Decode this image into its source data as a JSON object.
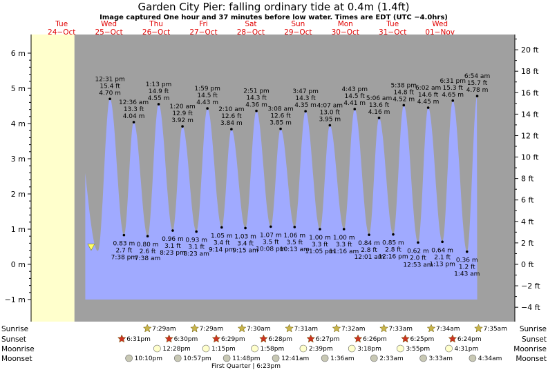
{
  "title": "Garden City Pier: falling  ordinary tide at 0.4m (1.4ft)",
  "subtitle": "Image captured One hour and 37 minutes before low water. Times are EDT (UTC −4.0hrs)",
  "colors": {
    "water": "#a0aaff",
    "day": "#ffffcc",
    "night": "#a0a0a0",
    "day_label": "#e00000",
    "sun_marker": "#c8b44b",
    "sunset_marker": "#cc3322",
    "moonrise": "#ffffcc",
    "moonset": "#c8c8b4"
  },
  "chart_data": {
    "type": "area",
    "title": "Garden City Pier: falling  ordinary tide at 0.4m (1.4ft)",
    "y_left": {
      "unit": "m",
      "ticks": [
        -1,
        0,
        1,
        2,
        3,
        4,
        5,
        6
      ],
      "labels": [
        "−1 m",
        "0 m",
        "1 m",
        "2 m",
        "3 m",
        "4 m",
        "5 m",
        "6 m"
      ]
    },
    "y_right": {
      "unit": "ft",
      "ticks": [
        -4,
        -2,
        0,
        2,
        4,
        6,
        8,
        10,
        12,
        14,
        16,
        18,
        20
      ],
      "labels": [
        "−4 ft",
        "−2 ft",
        "0 ft",
        "2 ft",
        "4 ft",
        "6 ft",
        "8 ft",
        "10 ft",
        "12 ft",
        "14 ft",
        "16 ft",
        "18 ft",
        "20 ft"
      ]
    },
    "days": [
      {
        "dow": "Tue",
        "date": "24−Oct"
      },
      {
        "dow": "Wed",
        "date": "25−Oct"
      },
      {
        "dow": "Thu",
        "date": "26−Oct"
      },
      {
        "dow": "Fri",
        "date": "27−Oct"
      },
      {
        "dow": "Sat",
        "date": "28−Oct"
      },
      {
        "dow": "Sun",
        "date": "29−Oct"
      },
      {
        "dow": "Mon",
        "date": "30−Oct"
      },
      {
        "dow": "Tue",
        "date": "31−Oct"
      },
      {
        "dow": "Wed",
        "date": "01−Nov"
      }
    ],
    "high_tides": [
      {
        "time": "12:31 pm",
        "ft": "15.4 ft",
        "m": "4.70 m",
        "h": 12.52,
        "value": 4.7
      },
      {
        "time": "12:36 am",
        "ft": "13.3 ft",
        "m": "4.04 m",
        "h": 24.6,
        "value": 4.04
      },
      {
        "time": "1:13 pm",
        "ft": "14.9 ft",
        "m": "4.55 m",
        "h": 37.22,
        "value": 4.55
      },
      {
        "time": "1:20 am",
        "ft": "12.9 ft",
        "m": "3.92 m",
        "h": 49.33,
        "value": 3.92
      },
      {
        "time": "1:59 pm",
        "ft": "14.5 ft",
        "m": "4.43 m",
        "h": 61.98,
        "value": 4.43
      },
      {
        "time": "2:10 am",
        "ft": "12.6 ft",
        "m": "3.84 m",
        "h": 74.17,
        "value": 3.84
      },
      {
        "time": "2:51 pm",
        "ft": "14.3 ft",
        "m": "4.36 m",
        "h": 86.85,
        "value": 4.36
      },
      {
        "time": "3:08 am",
        "ft": "12.6 ft",
        "m": "3.85 m",
        "h": 99.13,
        "value": 3.85
      },
      {
        "time": "3:47 pm",
        "ft": "14.3 ft",
        "m": "4.35 m",
        "h": 111.78,
        "value": 4.35
      },
      {
        "time": "4:07 am",
        "ft": "13.0 ft",
        "m": "3.95 m",
        "h": 124.12,
        "value": 3.95
      },
      {
        "time": "4:43 pm",
        "ft": "14.5 ft",
        "m": "4.41 m",
        "h": 136.72,
        "value": 4.41
      },
      {
        "time": "5:06 am",
        "ft": "13.6 ft",
        "m": "4.16 m",
        "h": 149.1,
        "value": 4.16
      },
      {
        "time": "5:38 pm",
        "ft": "14.8 ft",
        "m": "4.52 m",
        "h": 161.63,
        "value": 4.52
      },
      {
        "time": "6:02 am",
        "ft": "14.6 ft",
        "m": "4.45 m",
        "h": 174.03,
        "value": 4.45
      },
      {
        "time": "6:31 pm",
        "ft": "15.3 ft",
        "m": "4.65 m",
        "h": 186.52,
        "value": 4.65
      },
      {
        "time": "6:54 am",
        "ft": "15.7 ft",
        "m": "4.78 m",
        "h": 198.9,
        "value": 4.78
      }
    ],
    "low_tides": [
      {
        "m": "0.83 m",
        "ft": "2.7 ft",
        "time": "7:38 pm",
        "h": 19.63,
        "value": 0.83
      },
      {
        "m": "0.80 m",
        "ft": "2.6 ft",
        "time": "7:38 am",
        "h": 31.63,
        "value": 0.8
      },
      {
        "m": "0.96 m",
        "ft": "3.1 ft",
        "time": "8:23 pm",
        "h": 44.38,
        "value": 0.96
      },
      {
        "m": "0.93 m",
        "ft": "3.1 ft",
        "time": "8:23 am",
        "h": 56.38,
        "value": 0.93
      },
      {
        "m": "1.05 m",
        "ft": "3.4 ft",
        "time": "9:14 pm",
        "h": 69.23,
        "value": 1.05
      },
      {
        "m": "1.03 m",
        "ft": "3.4 ft",
        "time": "9:15 am",
        "h": 81.25,
        "value": 1.03
      },
      {
        "m": "1.07 m",
        "ft": "3.5 ft",
        "time": "10:08 pm",
        "h": 94.13,
        "value": 1.07
      },
      {
        "m": "1.06 m",
        "ft": "3.5 ft",
        "time": "10:13 am",
        "h": 106.22,
        "value": 1.06
      },
      {
        "m": "1.00 m",
        "ft": "3.3 ft",
        "time": "11:05 pm",
        "h": 119.08,
        "value": 1.0
      },
      {
        "m": "1.00 m",
        "ft": "3.3 ft",
        "time": "11:16 am",
        "h": 131.27,
        "value": 1.0
      },
      {
        "m": "0.84 m",
        "ft": "2.8 ft",
        "time": "12:01 am",
        "h": 144.02,
        "value": 0.84
      },
      {
        "m": "0.85 m",
        "ft": "2.8 ft",
        "time": "12:16 pm",
        "h": 156.27,
        "value": 0.85
      },
      {
        "m": "0.62 m",
        "ft": "2.0 ft",
        "time": "12:53 am",
        "h": 168.88,
        "value": 0.62
      },
      {
        "m": "0.64 m",
        "ft": "2.1 ft",
        "time": "1:13 pm",
        "h": 181.22,
        "value": 0.64
      },
      {
        "m": "0.36 m",
        "ft": "1.2 ft",
        "time": "1:43 am",
        "h": 193.72,
        "value": 0.36
      }
    ],
    "current_tide": {
      "h": 3.0,
      "value": 0.4
    },
    "x_range_hours": [
      0,
      216
    ]
  },
  "astro": {
    "row_labels": [
      "Sunrise",
      "Sunset",
      "Moonrise",
      "Moonset"
    ],
    "sunrise": [
      {
        "t": "7:29am",
        "h": 31.48
      },
      {
        "t": "7:29am",
        "h": 55.48
      },
      {
        "t": "7:30am",
        "h": 79.5
      },
      {
        "t": "7:31am",
        "h": 103.52
      },
      {
        "t": "7:32am",
        "h": 127.53
      },
      {
        "t": "7:33am",
        "h": 151.55
      },
      {
        "t": "7:34am",
        "h": 175.57
      },
      {
        "t": "7:35am",
        "h": 199.58
      }
    ],
    "sunset": [
      {
        "t": "6:31pm",
        "h": 18.52
      },
      {
        "t": "6:30pm",
        "h": 42.5
      },
      {
        "t": "6:29pm",
        "h": 66.48
      },
      {
        "t": "6:28pm",
        "h": 90.47
      },
      {
        "t": "6:27pm",
        "h": 114.45
      },
      {
        "t": "6:26pm",
        "h": 138.43
      },
      {
        "t": "6:25pm",
        "h": 162.42
      },
      {
        "t": "6:24pm",
        "h": 186.4
      }
    ],
    "moonrise": [
      {
        "t": "12:28pm",
        "h": 36.47
      },
      {
        "t": "1:15pm",
        "h": 61.25
      },
      {
        "t": "1:58pm",
        "h": 85.97
      },
      {
        "t": "2:39pm",
        "h": 110.65
      },
      {
        "t": "3:18pm",
        "h": 135.3
      },
      {
        "t": "3:55pm",
        "h": 159.92
      },
      {
        "t": "4:31pm",
        "h": 184.52
      }
    ],
    "moonset": [
      {
        "t": "10:10pm",
        "h": 22.17
      },
      {
        "t": "10:57pm",
        "h": 46.95
      },
      {
        "t": "11:48pm",
        "h": 71.8
      },
      {
        "t": "12:41am",
        "h": 96.68
      },
      {
        "t": "1:36am",
        "h": 121.6
      },
      {
        "t": "2:33am",
        "h": 146.55
      },
      {
        "t": "3:33am",
        "h": 171.55
      },
      {
        "t": "4:34am",
        "h": 196.57
      }
    ],
    "moon_phase": "First Quarter | 6:23pm"
  }
}
